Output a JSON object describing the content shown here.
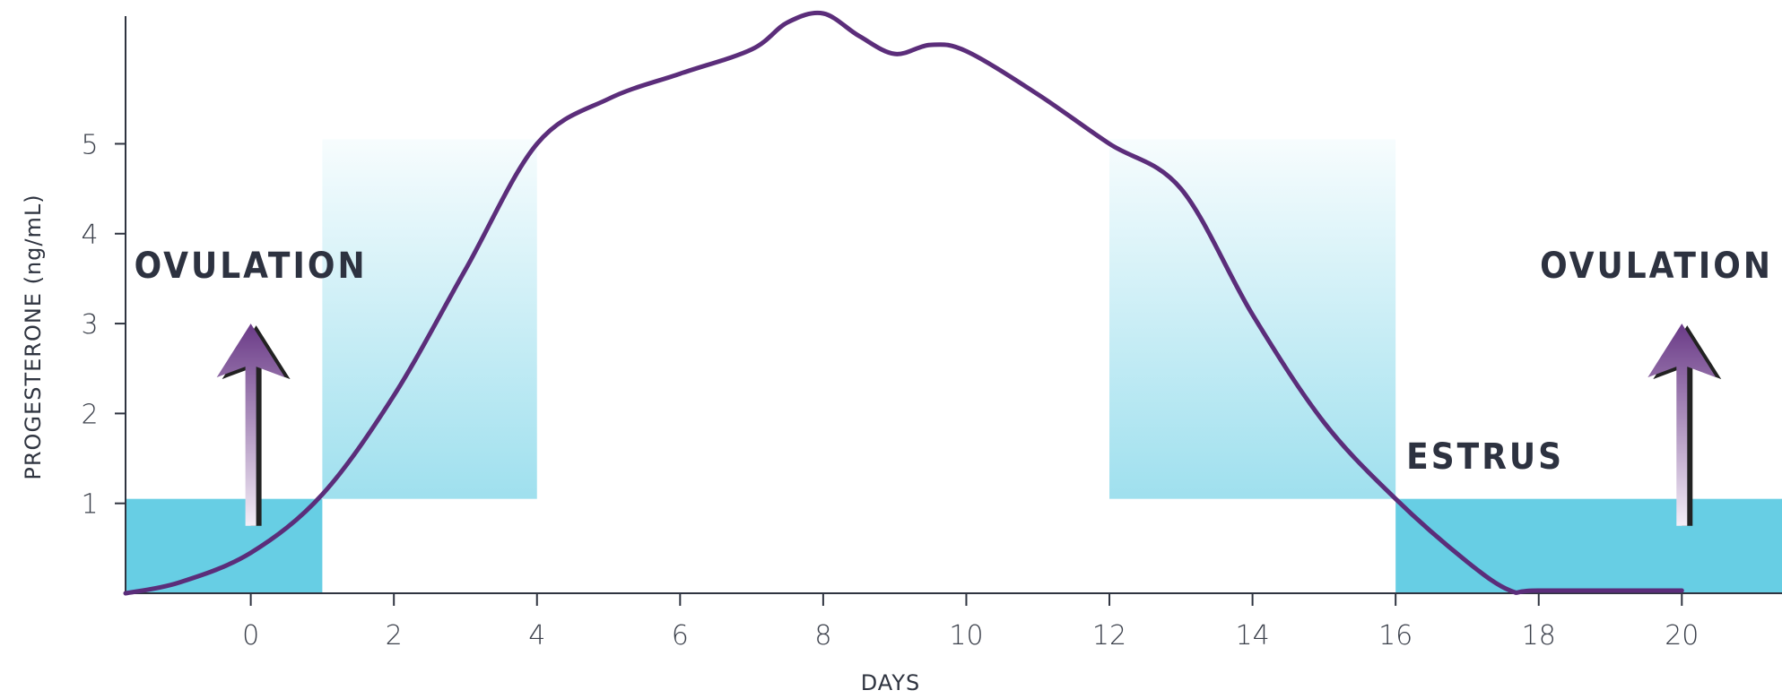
{
  "chart_data": {
    "type": "line",
    "title": "",
    "xlabel": "DAYS",
    "ylabel": "PROGESTERONE (ng/mL)",
    "xlim": [
      -1.75,
      21.4
    ],
    "ylim": [
      0,
      6.5
    ],
    "x_ticks": [
      0,
      2,
      4,
      6,
      8,
      10,
      12,
      14,
      16,
      18,
      20
    ],
    "y_ticks": [
      1,
      2,
      3,
      4,
      5
    ],
    "grid": false,
    "series": [
      {
        "color": "#5b2d7a",
        "points": [
          [
            -1.75,
            0.0
          ],
          [
            -1.0,
            0.12
          ],
          [
            0,
            0.45
          ],
          [
            1,
            1.1
          ],
          [
            2,
            2.2
          ],
          [
            3,
            3.6
          ],
          [
            4,
            5.0
          ],
          [
            5,
            5.5
          ],
          [
            6,
            5.78
          ],
          [
            7,
            6.05
          ],
          [
            7.5,
            6.35
          ],
          [
            8,
            6.45
          ],
          [
            8.5,
            6.2
          ],
          [
            9,
            6.0
          ],
          [
            9.5,
            6.1
          ],
          [
            10,
            6.03
          ],
          [
            11,
            5.55
          ],
          [
            12,
            5.0
          ],
          [
            13,
            4.5
          ],
          [
            14,
            3.1
          ],
          [
            15,
            1.9
          ],
          [
            16,
            1.05
          ],
          [
            17,
            0.35
          ],
          [
            17.6,
            0.03
          ],
          [
            18,
            0.03
          ],
          [
            20,
            0.03
          ]
        ]
      }
    ],
    "bands": [
      {
        "x": [
          -1.75,
          1
        ],
        "y": [
          0,
          1.05
        ],
        "style": "solid",
        "color": "#5fcbe3"
      },
      {
        "x": [
          1,
          4
        ],
        "y": [
          1.05,
          5.05
        ],
        "style": "gradient",
        "color": "#5fcbe3"
      },
      {
        "x": [
          12,
          16
        ],
        "y": [
          1.05,
          5.05
        ],
        "style": "gradient",
        "color": "#5fcbe3"
      },
      {
        "x": [
          16,
          21.4
        ],
        "y": [
          0,
          1.05
        ],
        "style": "solid",
        "color": "#5fcbe3"
      }
    ],
    "annotations": [
      {
        "text": "OVULATION",
        "x": 0
      },
      {
        "text": "OVULATION",
        "x": 20
      },
      {
        "text": "ESTRUS",
        "x": 16.75
      }
    ],
    "arrows": [
      {
        "x": 0,
        "y_from": 0.75,
        "y_to": 3.0,
        "color": "#6a3a87"
      },
      {
        "x": 20,
        "y_from": 0.75,
        "y_to": 3.0,
        "color": "#6a3a87"
      }
    ]
  }
}
